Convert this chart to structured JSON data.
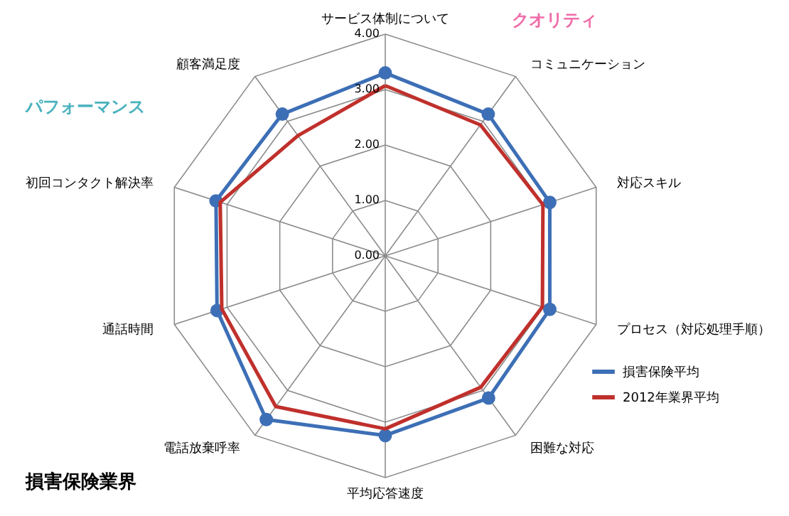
{
  "chart_data": {
    "type": "radar",
    "title": "損害保険業界",
    "categories": [
      "サービス体制について",
      "コミュニケーション",
      "対応スキル",
      "プロセス（対応処理手順）",
      "困難な対応",
      "平均応答速度",
      "電話放棄呼率",
      "通話時間",
      "初回コンタクト解決率",
      "顧客満足度"
    ],
    "series": [
      {
        "name": "損害保険平均",
        "color": "#3d6fb6",
        "marker": "circle",
        "values": [
          3.3,
          3.16,
          3.12,
          3.12,
          3.17,
          3.24,
          3.65,
          3.19,
          3.21,
          3.16
        ]
      },
      {
        "name": "2012年業界平均",
        "color": "#c0302c",
        "marker": "none",
        "values": [
          3.07,
          2.92,
          2.99,
          2.98,
          2.93,
          3.12,
          3.36,
          3.1,
          3.13,
          2.68
        ]
      }
    ],
    "ylim": [
      0,
      4
    ],
    "yticks": [
      {
        "value": 0,
        "label": "0.00"
      },
      {
        "value": 1,
        "label": "1.00"
      },
      {
        "value": 2,
        "label": "2.00"
      },
      {
        "value": 3,
        "label": "3.00"
      },
      {
        "value": 4,
        "label": "4.00"
      }
    ],
    "grid": true,
    "legend": "right",
    "annotations": [
      "クオリティ",
      "パフォーマンス"
    ]
  }
}
